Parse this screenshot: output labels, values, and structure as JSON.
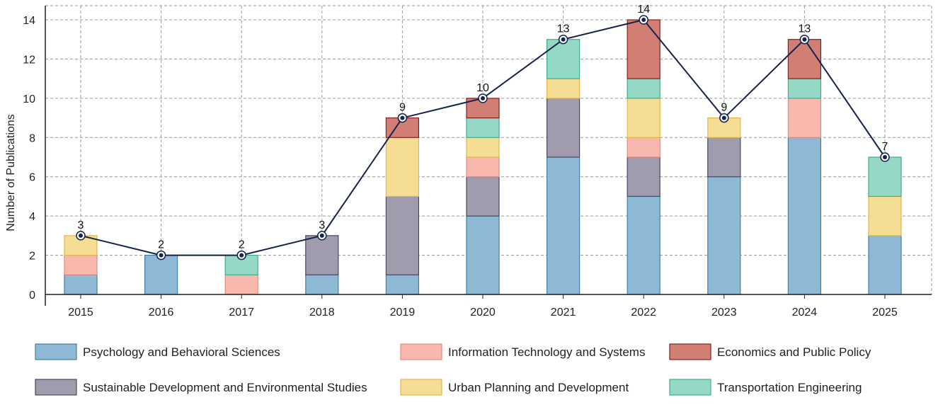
{
  "chart_data": {
    "type": "bar",
    "stacked": true,
    "title": "",
    "xlabel": "",
    "ylabel": "Number of Publications",
    "ylim": [
      0,
      14
    ],
    "yticks": [
      0,
      2,
      4,
      6,
      8,
      10,
      12,
      14
    ],
    "grid": true,
    "legend_position": "bottom",
    "categories": [
      "2015",
      "2016",
      "2017",
      "2018",
      "2019",
      "2020",
      "2021",
      "2022",
      "2023",
      "2024",
      "2025"
    ],
    "series": [
      {
        "name": "Psychology and Behavioral Sciences",
        "fill": "#8db9d4",
        "stroke": "#3f7fa8",
        "values": [
          1,
          2,
          0,
          1,
          1,
          4,
          7,
          5,
          6,
          8,
          3
        ]
      },
      {
        "name": "Sustainable Development and Environmental Studies",
        "fill": "#a09cae",
        "stroke": "#4b4760",
        "values": [
          0,
          0,
          0,
          2,
          4,
          2,
          3,
          2,
          2,
          0,
          0
        ]
      },
      {
        "name": "Information Technology and Systems",
        "fill": "#f9b8ad",
        "stroke": "#e58a80",
        "values": [
          1,
          0,
          1,
          0,
          0,
          1,
          0,
          1,
          0,
          2,
          0
        ]
      },
      {
        "name": "Urban Planning and Development",
        "fill": "#f6dd94",
        "stroke": "#e0b94c",
        "values": [
          1,
          0,
          0,
          0,
          3,
          1,
          1,
          2,
          1,
          0,
          2
        ]
      },
      {
        "name": "Transportation Engineering",
        "fill": "#96d8c6",
        "stroke": "#3fae8f",
        "values": [
          0,
          0,
          1,
          0,
          0,
          1,
          2,
          1,
          0,
          1,
          2
        ]
      },
      {
        "name": "Economics and Public Policy",
        "fill": "#d17f75",
        "stroke": "#8c1f1a",
        "values": [
          0,
          0,
          0,
          0,
          1,
          1,
          0,
          3,
          0,
          2,
          0
        ]
      }
    ],
    "totals": [
      3,
      2,
      2,
      3,
      9,
      10,
      13,
      14,
      9,
      13,
      7
    ],
    "total_line_color": "#15234d",
    "legend_order": [
      "Psychology and Behavioral Sciences",
      "Information Technology and Systems",
      "Economics and Public Policy",
      "Sustainable Development and Environmental Studies",
      "Urban Planning and Development",
      "Transportation Engineering"
    ]
  }
}
